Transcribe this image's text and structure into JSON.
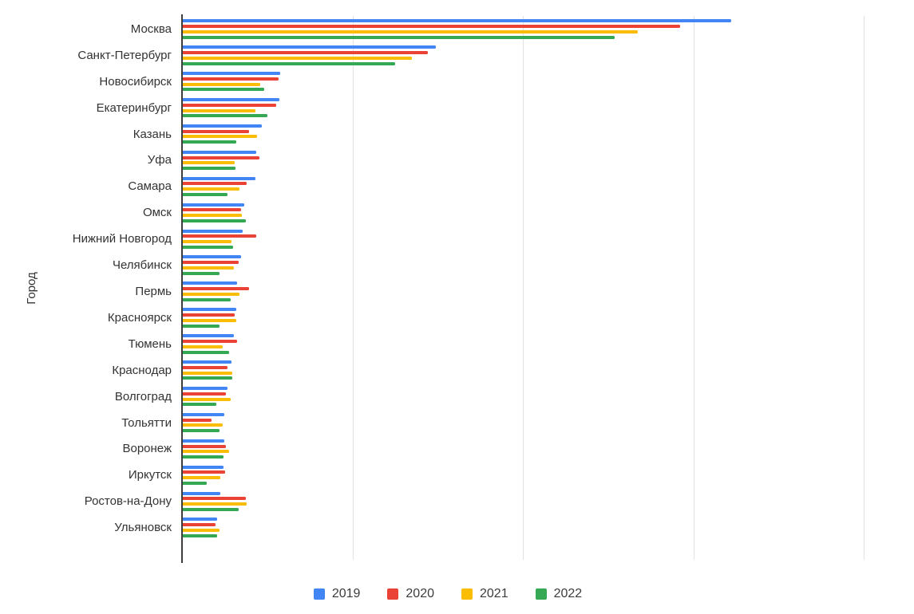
{
  "page": {
    "background": "#ffffff"
  },
  "chart_data": {
    "type": "bar",
    "orientation": "horizontal",
    "grouped": true,
    "title": "",
    "xlabel": "",
    "ylabel": "Город",
    "categories": [
      "Москва",
      "Санкт-Петербург",
      "Новосибирск",
      "Екатеринбург",
      "Казань",
      "Уфа",
      "Самара",
      "Омск",
      "Нижний Новгород",
      "Челябинск",
      "Пермь",
      "Красноярск",
      "Тюмень",
      "Краснодар",
      "Волгоград",
      "Тольятти",
      "Воронеж",
      "Иркутск",
      "Ростов-на-Дону",
      "Ульяновск"
    ],
    "series": [
      {
        "name": "2019",
        "color": "#4285F4",
        "values": [
          80.5,
          37.1,
          14.3,
          14.2,
          11.6,
          10.8,
          10.6,
          9.0,
          8.8,
          8.5,
          8.0,
          7.9,
          7.5,
          7.2,
          6.6,
          6.1,
          6.1,
          6.0,
          5.5,
          5.0
        ]
      },
      {
        "name": "2020",
        "color": "#EA4335",
        "values": [
          72.9,
          36.0,
          14.1,
          13.7,
          9.7,
          11.2,
          9.4,
          8.5,
          10.8,
          8.2,
          9.7,
          7.6,
          8.0,
          6.6,
          6.3,
          4.2,
          6.3,
          6.2,
          9.2,
          4.8
        ]
      },
      {
        "name": "2021",
        "color": "#FBBC04",
        "values": [
          66.8,
          33.6,
          11.3,
          10.6,
          10.9,
          7.6,
          8.3,
          8.7,
          7.2,
          7.5,
          8.3,
          7.9,
          5.9,
          7.3,
          7.0,
          5.9,
          6.8,
          5.5,
          9.4,
          5.4
        ]
      },
      {
        "name": "2022",
        "color": "#34A853",
        "values": [
          63.4,
          31.2,
          12.0,
          12.4,
          7.9,
          7.7,
          6.6,
          9.2,
          7.4,
          5.4,
          7.0,
          5.4,
          6.8,
          7.3,
          4.9,
          5.4,
          6.0,
          3.5,
          8.2,
          5.0
        ]
      }
    ],
    "x_axis": {
      "tick_labels_visible": false,
      "gridline_values": [
        25,
        50,
        75,
        100
      ],
      "min": 0,
      "max": 107,
      "units": "relative (axis unlabeled, estimated from gridlines)"
    },
    "legend": {
      "position": "bottom",
      "entries": [
        "2019",
        "2020",
        "2021",
        "2022"
      ]
    },
    "grid": true
  }
}
